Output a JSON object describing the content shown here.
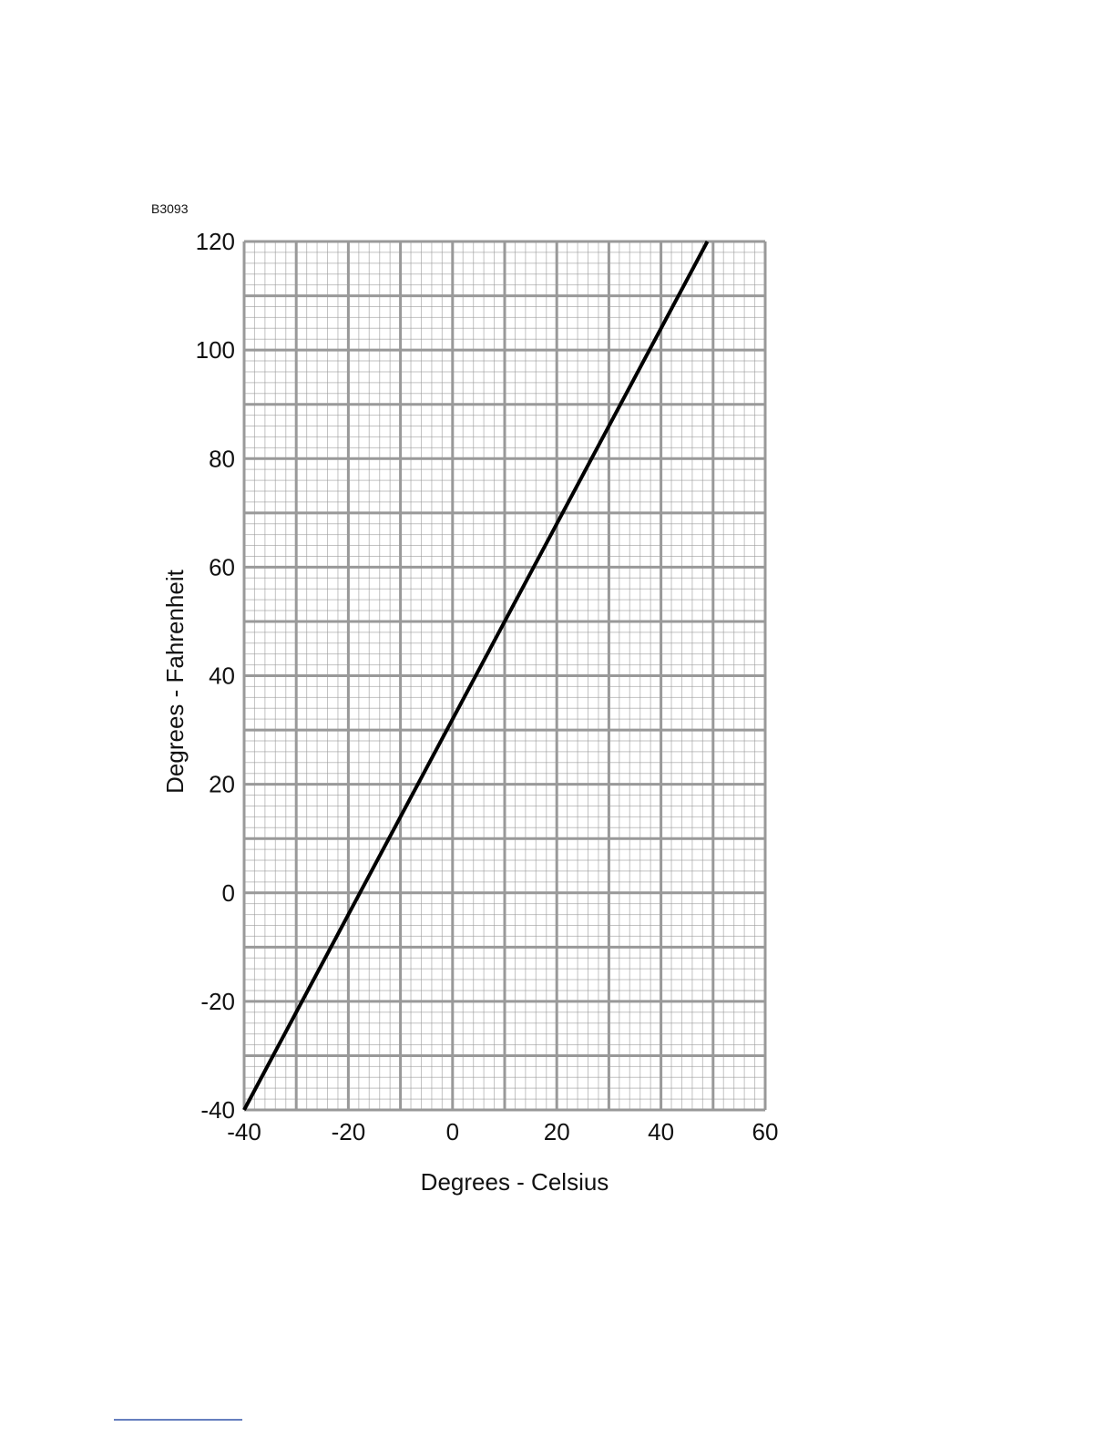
{
  "chart_data": {
    "type": "line",
    "annotation": "B3093",
    "x_label": "Degrees - Celsius",
    "y_label": "Degrees - Fahrenheit",
    "x": [
      -40,
      48.9
    ],
    "series": [
      {
        "color": "#000000",
        "values": [
          -40,
          120
        ]
      }
    ],
    "xlim": [
      -40,
      60
    ],
    "xticks": [
      -40,
      -20,
      0,
      20,
      40,
      60
    ],
    "ylim": [
      -40,
      120
    ],
    "yticks": [
      -40,
      -20,
      0,
      20,
      40,
      60,
      80,
      100,
      120
    ],
    "grid": true,
    "grid_color": "#999999"
  }
}
